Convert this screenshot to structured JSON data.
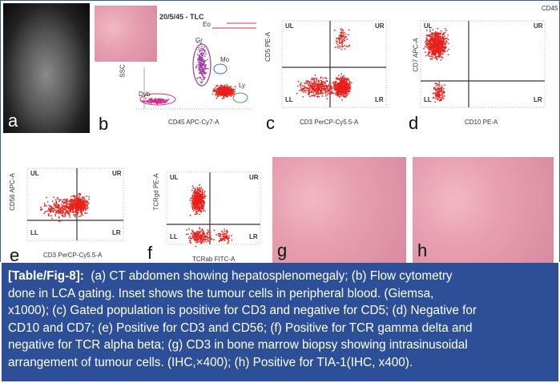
{
  "panels": {
    "a": {
      "label": "a"
    },
    "b": {
      "label": "b",
      "title": "20/5/45 - TLC",
      "subtitle": "Eo",
      "xlabel": "CD45 APC-Cy7-A",
      "ylabel": "SSC",
      "gates": [
        "Gr",
        "Mo",
        "Ly",
        "Dyb"
      ]
    },
    "c": {
      "label": "c",
      "xlabel": "CD3 PerCP-Cy5.5-A",
      "ylabel": "CD5 PE-A"
    },
    "d": {
      "label": "d",
      "xlabel": "CD10 PE-A",
      "ylabel": "CD7 APC-A",
      "corner": "CD45 /"
    },
    "e": {
      "label": "e",
      "xlabel": "CD3 PerCP-Cy5.5-A",
      "ylabel": "CD56 APC-A"
    },
    "f": {
      "label": "f",
      "xlabel": "TCRab FITC-A",
      "ylabel": "TCRgd PE-A"
    },
    "g": {
      "label": "g"
    },
    "h": {
      "label": "h"
    }
  },
  "quadrants": [
    "UL",
    "UR",
    "LL",
    "LR"
  ],
  "caption": {
    "lead": "[Table/Fig-8]:",
    "lines": [
      "  (a) CT abdomen showing hepatosplenomegaly; (b) Flow cytometry",
      "done in LCA gating. Inset shows the tumour cells in peripheral blood. (Giemsa,",
      "x1000); (c) Gated population is positive for CD3 and negative for CD5; (d) Negative for",
      "CD10 and CD7; (e) Positive for CD3 and CD56; (f) Positive for TCR gamma delta and",
      "negative for TCR alpha beta; (g) CD3 in bone marrow biopsy showing intrasinusoidal",
      "arrangement of tumour cells. (IHC,×400); (h) Positive for TIA-1(IHC, x400)."
    ]
  },
  "colors": {
    "caption_bg": "#2c4f98",
    "dots": "#e8201c"
  }
}
